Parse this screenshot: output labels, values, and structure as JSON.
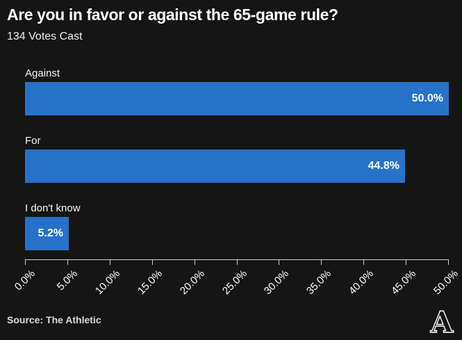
{
  "header": {
    "title": "Are you in favor or against the 65-game rule?",
    "subtitle": "134 Votes Cast"
  },
  "footer": {
    "source": "Source: The Athletic",
    "logo_letter": "A",
    "logo_name": "the-athletic-logo"
  },
  "colors": {
    "background": "#151515",
    "bar_blue": "#2772c9",
    "text_white": "#ffffff",
    "muted_gray": "#d9d9d9",
    "axis_gray": "#cfcfcf"
  },
  "chart_data": {
    "type": "bar",
    "orientation": "horizontal",
    "title": "Are you in favor or against the 65-game rule?",
    "subtitle": "134 Votes Cast",
    "categories": [
      "Against",
      "For",
      "I don't know"
    ],
    "values": [
      50.0,
      44.8,
      5.2
    ],
    "value_labels": [
      "50.0%",
      "44.8%",
      "5.2%"
    ],
    "xlim": [
      0,
      50
    ],
    "x_tick_labels": [
      "0.0%",
      "5.0%",
      "10.0%",
      "15.0%",
      "20.0%",
      "25.0%",
      "30.0%",
      "35.0%",
      "40.0%",
      "45.0%",
      "50.0%"
    ],
    "x_tick_values": [
      0,
      5,
      10,
      15,
      20,
      25,
      30,
      35,
      40,
      45,
      50
    ],
    "tick_label_rotation_deg": 45,
    "grid": false,
    "legend": "none",
    "bar_color": "#2772c9"
  }
}
